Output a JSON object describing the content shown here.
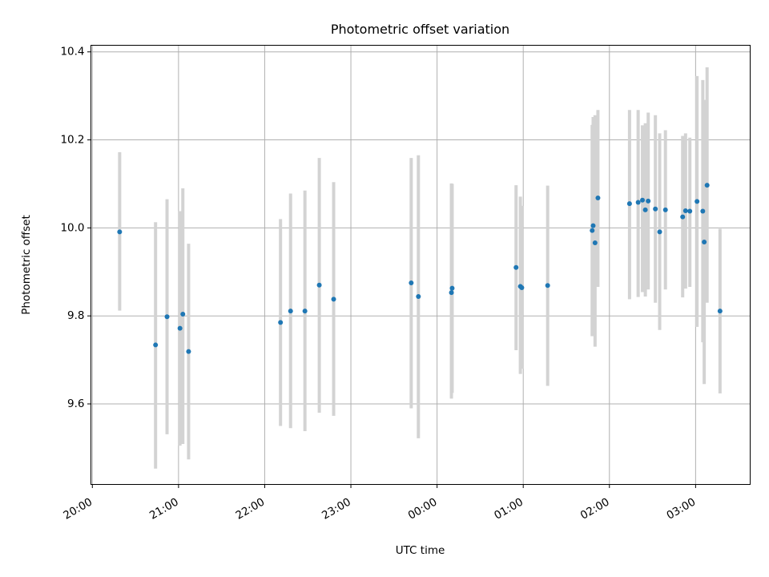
{
  "chart_data": {
    "type": "scatter",
    "title": "Photometric offset variation",
    "xlabel": "UTC time",
    "ylabel": "Photometric offset",
    "xlim": [
      "2000-01-01T19:59:00",
      "2000-01-02T03:38:00"
    ],
    "ylim": [
      9.417,
      10.415
    ],
    "grid": true,
    "x_ticks": [
      {
        "t": "2000-01-01T20:00:00",
        "label": "20:00"
      },
      {
        "t": "2000-01-01T21:00:00",
        "label": "21:00"
      },
      {
        "t": "2000-01-01T22:00:00",
        "label": "22:00"
      },
      {
        "t": "2000-01-01T23:00:00",
        "label": "23:00"
      },
      {
        "t": "2000-01-02T00:00:00",
        "label": "00:00"
      },
      {
        "t": "2000-01-02T01:00:00",
        "label": "01:00"
      },
      {
        "t": "2000-01-02T02:00:00",
        "label": "02:00"
      },
      {
        "t": "2000-01-02T03:00:00",
        "label": "03:00"
      }
    ],
    "y_ticks": [
      {
        "v": 9.6,
        "label": "9.6"
      },
      {
        "v": 9.8,
        "label": "9.8"
      },
      {
        "v": 10.0,
        "label": "10.0"
      },
      {
        "v": 10.2,
        "label": "10.2"
      },
      {
        "v": 10.4,
        "label": "10.4"
      }
    ],
    "colors": {
      "point": "#1f77b4",
      "errorbar": "#d3d3d3",
      "grid": "#b0b0b0",
      "axes": "#000000"
    },
    "points": [
      {
        "t": "2000-01-01T20:19:00",
        "y": 9.991,
        "lo": 9.812,
        "hi": 10.172
      },
      {
        "t": "2000-01-01T20:44:00",
        "y": 9.734,
        "lo": 9.453,
        "hi": 10.013
      },
      {
        "t": "2000-01-01T20:52:00",
        "y": 9.798,
        "lo": 9.531,
        "hi": 10.065
      },
      {
        "t": "2000-01-01T21:01:00",
        "y": 9.772,
        "lo": 9.505,
        "hi": 10.038
      },
      {
        "t": "2000-01-01T21:03:00",
        "y": 9.804,
        "lo": 9.509,
        "hi": 10.09
      },
      {
        "t": "2000-01-01T21:07:00",
        "y": 9.719,
        "lo": 9.474,
        "hi": 9.964
      },
      {
        "t": "2000-01-01T22:11:00",
        "y": 9.785,
        "lo": 9.55,
        "hi": 10.02
      },
      {
        "t": "2000-01-01T22:18:00",
        "y": 9.811,
        "lo": 9.545,
        "hi": 10.078
      },
      {
        "t": "2000-01-01T22:28:00",
        "y": 9.811,
        "lo": 9.538,
        "hi": 10.085
      },
      {
        "t": "2000-01-01T22:38:00",
        "y": 9.87,
        "lo": 9.58,
        "hi": 10.159
      },
      {
        "t": "2000-01-01T22:48:00",
        "y": 9.838,
        "lo": 9.573,
        "hi": 10.104
      },
      {
        "t": "2000-01-01T23:42:00",
        "y": 9.875,
        "lo": 9.59,
        "hi": 10.159
      },
      {
        "t": "2000-01-01T23:47:00",
        "y": 9.844,
        "lo": 9.522,
        "hi": 10.165
      },
      {
        "t": "2000-01-02T00:10:00",
        "y": 9.853,
        "lo": 9.612,
        "hi": 10.101
      },
      {
        "t": "2000-01-02T00:10:30",
        "y": 9.863,
        "lo": 9.625,
        "hi": 10.1
      },
      {
        "t": "2000-01-02T00:55:00",
        "y": 9.91,
        "lo": 9.722,
        "hi": 10.097
      },
      {
        "t": "2000-01-02T00:58:00",
        "y": 9.867,
        "lo": 9.668,
        "hi": 10.071
      },
      {
        "t": "2000-01-02T00:59:00",
        "y": 9.864,
        "lo": 9.68,
        "hi": 10.05
      },
      {
        "t": "2000-01-02T01:17:00",
        "y": 9.869,
        "lo": 9.641,
        "hi": 10.096
      },
      {
        "t": "2000-01-02T01:48:00",
        "y": 9.994,
        "lo": 9.754,
        "hi": 10.234
      },
      {
        "t": "2000-01-02T01:48:40",
        "y": 10.005,
        "lo": 9.758,
        "hi": 10.252
      },
      {
        "t": "2000-01-02T01:50:00",
        "y": 9.966,
        "lo": 9.73,
        "hi": 10.256
      },
      {
        "t": "2000-01-02T01:52:00",
        "y": 10.068,
        "lo": 9.866,
        "hi": 10.268
      },
      {
        "t": "2000-01-02T02:14:00",
        "y": 10.055,
        "lo": 9.838,
        "hi": 10.268
      },
      {
        "t": "2000-01-02T02:20:00",
        "y": 10.058,
        "lo": 9.843,
        "hi": 10.268
      },
      {
        "t": "2000-01-02T02:23:00",
        "y": 10.063,
        "lo": 9.854,
        "hi": 10.233
      },
      {
        "t": "2000-01-02T02:25:00",
        "y": 10.041,
        "lo": 9.844,
        "hi": 10.238
      },
      {
        "t": "2000-01-02T02:27:00",
        "y": 10.061,
        "lo": 9.86,
        "hi": 10.262
      },
      {
        "t": "2000-01-02T02:32:00",
        "y": 10.043,
        "lo": 9.83,
        "hi": 10.256
      },
      {
        "t": "2000-01-02T02:35:00",
        "y": 9.991,
        "lo": 9.768,
        "hi": 10.215
      },
      {
        "t": "2000-01-02T02:39:00",
        "y": 10.041,
        "lo": 9.86,
        "hi": 10.222
      },
      {
        "t": "2000-01-02T02:51:00",
        "y": 10.025,
        "lo": 9.842,
        "hi": 10.209
      },
      {
        "t": "2000-01-02T02:53:00",
        "y": 10.039,
        "lo": 9.862,
        "hi": 10.215
      },
      {
        "t": "2000-01-02T02:56:00",
        "y": 10.038,
        "lo": 9.866,
        "hi": 10.205
      },
      {
        "t": "2000-01-02T03:01:00",
        "y": 10.06,
        "lo": 9.775,
        "hi": 10.345
      },
      {
        "t": "2000-01-02T03:05:00",
        "y": 10.038,
        "lo": 9.74,
        "hi": 10.336
      },
      {
        "t": "2000-01-02T03:06:00",
        "y": 9.968,
        "lo": 9.645,
        "hi": 10.291
      },
      {
        "t": "2000-01-02T03:08:00",
        "y": 10.097,
        "lo": 9.83,
        "hi": 10.365
      },
      {
        "t": "2000-01-02T03:17:00",
        "y": 9.811,
        "lo": 9.624,
        "hi": 9.998
      }
    ]
  }
}
